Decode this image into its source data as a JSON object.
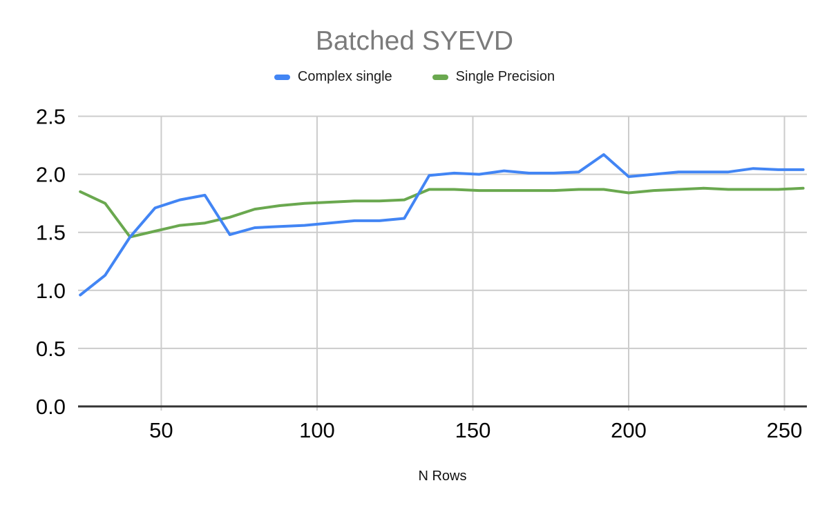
{
  "chart": {
    "title": "Batched SYEVD",
    "x_axis_label": "N Rows"
  },
  "colors": {
    "series_complex_single": "#4285f4",
    "series_single_precision": "#6aa84f",
    "gridline": "#cccccc",
    "axis_line": "#333333",
    "title_text": "#7b7b7b",
    "tick_text": "#050505"
  },
  "chart_data": {
    "type": "line",
    "title": "Batched SYEVD",
    "xlabel": "N Rows",
    "ylabel": "",
    "xlim": [
      23.3,
      257.2
    ],
    "ylim": [
      0,
      2.5
    ],
    "grid": true,
    "legend_position": "top",
    "x_ticks": [
      "50",
      "100",
      "150",
      "200",
      "250"
    ],
    "x_gridlines": [
      50,
      100,
      150,
      200,
      250
    ],
    "y_ticks": [
      "0.0",
      "0.5",
      "1.0",
      "1.5",
      "2.0",
      "2.5"
    ],
    "y_gridlines": [
      0,
      0.5,
      1.0,
      1.5,
      2.0,
      2.5
    ],
    "x": [
      24,
      32,
      40,
      48,
      56,
      64,
      72,
      80,
      88,
      96,
      104,
      112,
      120,
      128,
      136,
      144,
      152,
      160,
      168,
      176,
      184,
      192,
      200,
      208,
      216,
      224,
      232,
      240,
      248,
      256
    ],
    "series": [
      {
        "name": "Complex single",
        "color": "#4285f4",
        "values": [
          0.96,
          1.13,
          1.46,
          1.71,
          1.78,
          1.82,
          1.48,
          1.54,
          1.55,
          1.56,
          1.58,
          1.6,
          1.6,
          1.62,
          1.99,
          2.01,
          2.0,
          2.03,
          2.01,
          2.01,
          2.02,
          2.17,
          1.98,
          2.0,
          2.02,
          2.02,
          2.02,
          2.05,
          2.04,
          2.04
        ]
      },
      {
        "name": "Single Precision",
        "color": "#6aa84f",
        "values": [
          1.85,
          1.75,
          1.46,
          1.51,
          1.56,
          1.58,
          1.63,
          1.7,
          1.73,
          1.75,
          1.76,
          1.77,
          1.77,
          1.78,
          1.87,
          1.87,
          1.86,
          1.86,
          1.86,
          1.86,
          1.87,
          1.87,
          1.84,
          1.86,
          1.87,
          1.88,
          1.87,
          1.87,
          1.87,
          1.88
        ]
      }
    ]
  }
}
